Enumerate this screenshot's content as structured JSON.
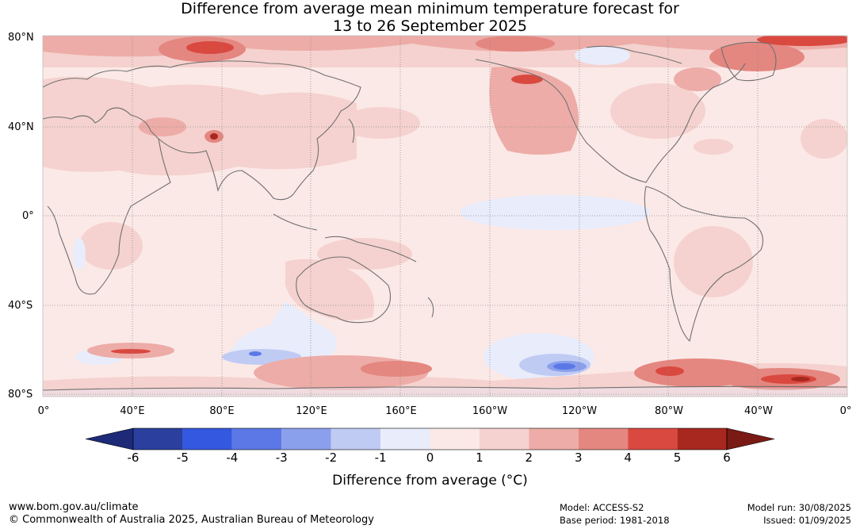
{
  "title": {
    "line1": "Difference from average mean minimum temperature forecast for",
    "line2": "13 to 26 September 2025"
  },
  "axes": {
    "lat_labels": [
      "80°N",
      "40°N",
      "0°",
      "40°S",
      "80°S"
    ],
    "lon_labels": [
      "0°",
      "40°E",
      "80°E",
      "120°E",
      "160°E",
      "160°W",
      "120°W",
      "80°W",
      "40°W",
      "0°"
    ]
  },
  "colorbar": {
    "ticks": [
      "-6",
      "-5",
      "-4",
      "-3",
      "-2",
      "-1",
      "0",
      "1",
      "2",
      "3",
      "4",
      "5",
      "6"
    ],
    "colors": [
      "#2a3f9e",
      "#3558e0",
      "#5b78e6",
      "#8ba0ec",
      "#c0cbf4",
      "#e8ecfb",
      "#fbe9e7",
      "#f5d2cf",
      "#edaca7",
      "#e48780",
      "#d9493f",
      "#a8271f"
    ],
    "under_color": "#1c2a78",
    "over_color": "#7a1a14",
    "label": "Difference from average (°C)"
  },
  "footer": {
    "url": "www.bom.gov.au/climate",
    "copyright": "© Commonwealth of Australia 2025, Australian Bureau of Meteorology",
    "model": "Model: ACCESS-S2",
    "base_period": "Base period: 1981-2018",
    "model_run": "Model run: 30/08/2025",
    "issued": "Issued: 01/09/2025"
  }
}
